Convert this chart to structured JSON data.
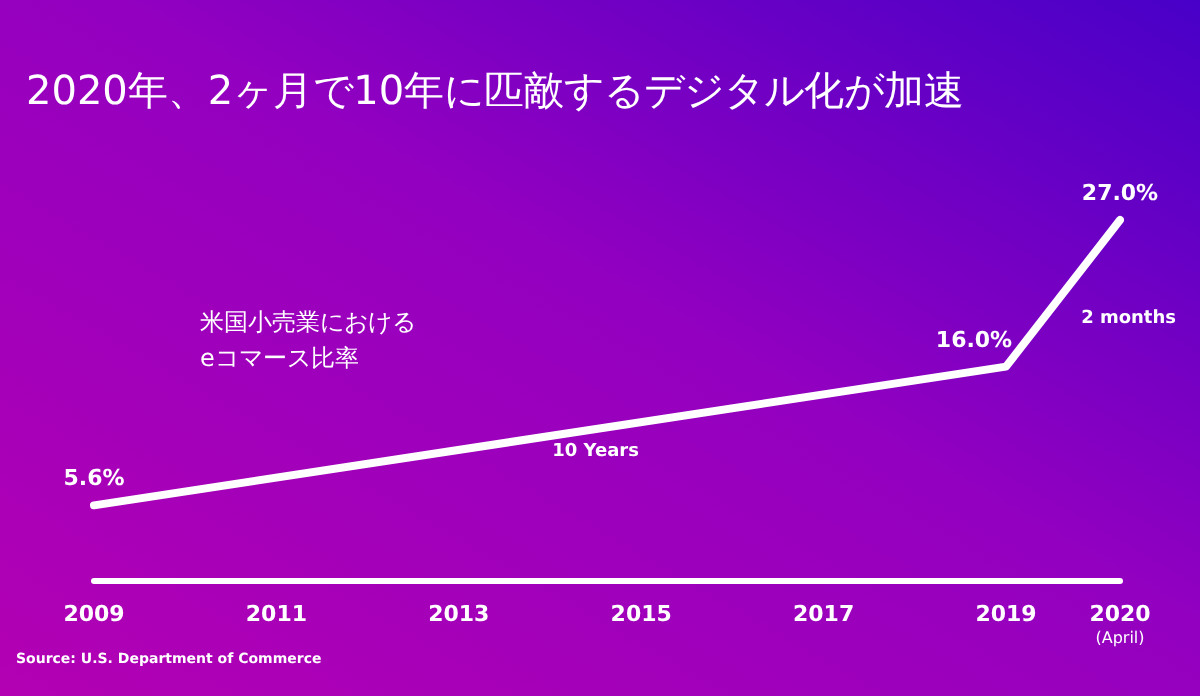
{
  "chart_data": {
    "type": "line",
    "title": "2020年、2ヶ月で10年に匹敵するデジタル化が加速",
    "subtitle": "米国小売業における\neコマース比率",
    "x": [
      2009,
      2019,
      2020.25
    ],
    "series": [
      {
        "color": "#ffffff",
        "values": [
          5.6,
          16.0,
          27.0
        ],
        "value_labels": [
          "5.6%",
          "16.0%",
          "27.0%"
        ]
      }
    ],
    "xlim": [
      2009,
      2020.25
    ],
    "xticks": [
      2009,
      2011,
      2013,
      2015,
      2017,
      2019,
      {
        "value": 2020.25,
        "label": "2020\n(April)"
      }
    ],
    "tick_labels": "x",
    "grid": false,
    "marker": "none",
    "line_style": "solid",
    "annotations": [
      {
        "text": "10 Years",
        "x": 2014.5,
        "y": 11.2
      },
      "2 months",
      "Source: U.S. Department of Commerce"
    ]
  }
}
